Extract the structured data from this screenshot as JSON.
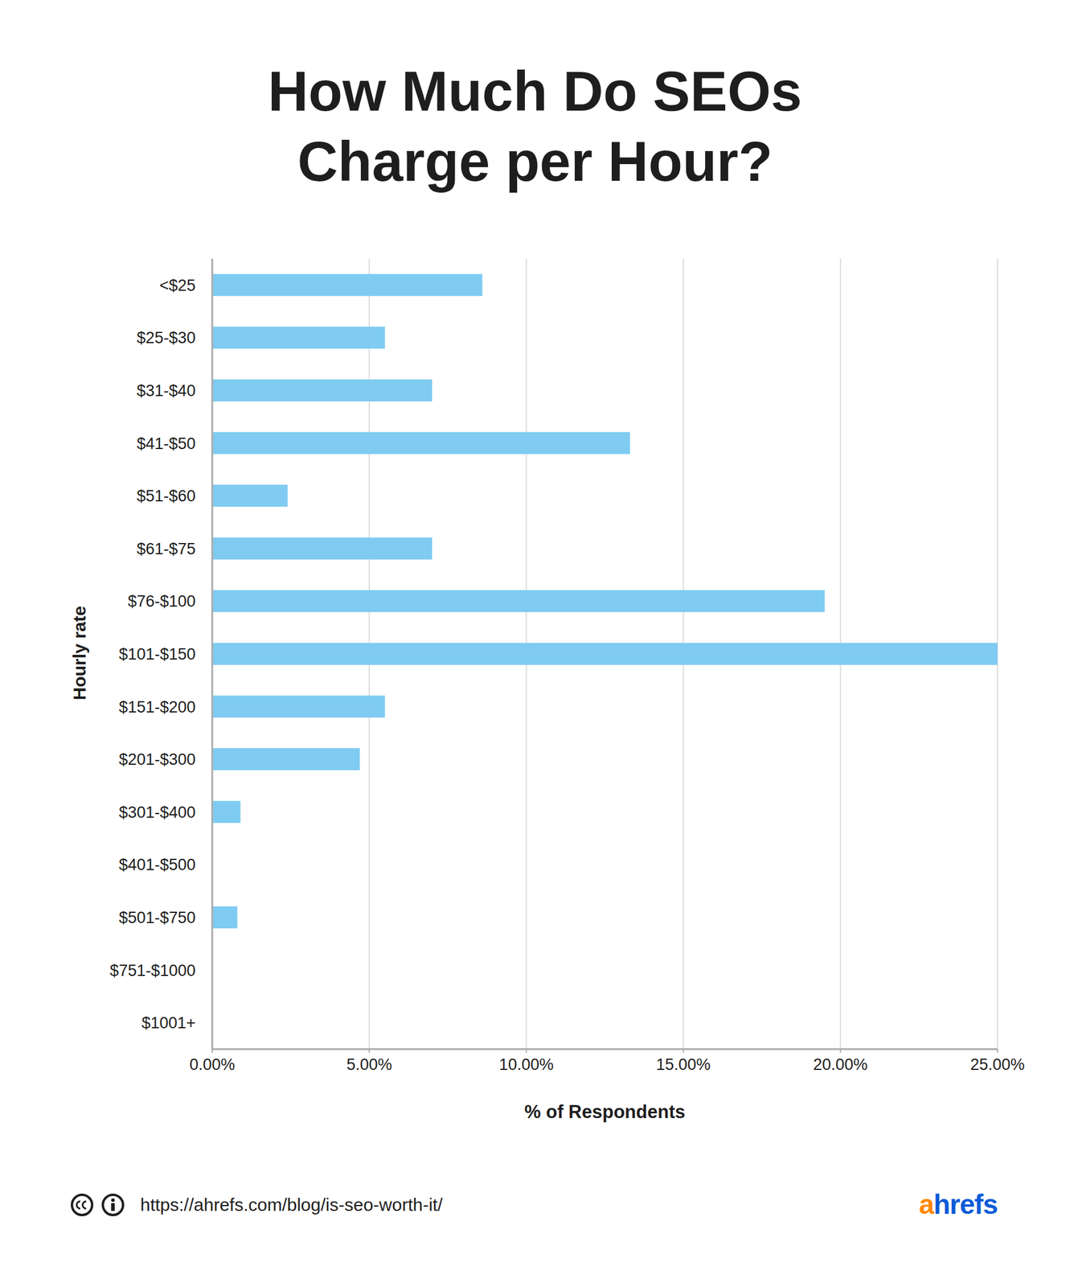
{
  "chart_data": {
    "type": "bar",
    "orientation": "horizontal",
    "title": "How Much Do SEOs Charge per Hour?",
    "x_label": "% of Respondents",
    "y_label": "Hourly rate",
    "categories": [
      "<$25",
      "$25-$30",
      "$31-$40",
      "$41-$50",
      "$51-$60",
      "$61-$75",
      "$76-$100",
      "$101-$150",
      "$151-$200",
      "$201-$300",
      "$301-$400",
      "$401-$500",
      "$501-$750",
      "$751-$1000",
      "$1001+"
    ],
    "values": [
      8.6,
      5.5,
      7.0,
      13.3,
      2.4,
      7.0,
      19.5,
      25.0,
      5.5,
      4.7,
      0.9,
      0,
      0.8,
      0,
      0
    ],
    "color": "#7fcbf1",
    "xlim": [
      0,
      25
    ],
    "xticks": [
      {
        "value": 0,
        "label": "0.00%"
      },
      {
        "value": 5,
        "label": "5.00%"
      },
      {
        "value": 10,
        "label": "10.00%"
      },
      {
        "value": 15,
        "label": "15.00%"
      },
      {
        "value": 20,
        "label": "20.00%"
      },
      {
        "value": 25,
        "label": "25.00%"
      }
    ],
    "grid": true,
    "source": "https://ahrefs.com/blog/is-seo-worth-it/",
    "brand": "ahrefs"
  }
}
